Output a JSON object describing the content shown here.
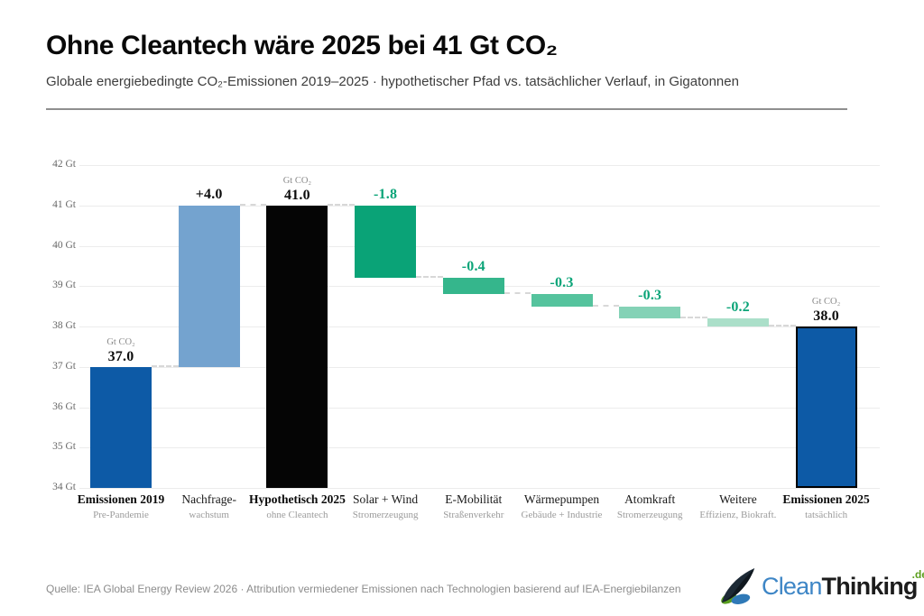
{
  "header": {
    "title": "Ohne Cleantech wäre 2025 bei 41 Gt CO₂",
    "subtitle": "Globale energiebedingte CO₂-Emissionen 2019–2025 · hypothetischer Pfad vs. tatsächlicher Verlauf, in Gigatonnen"
  },
  "footer": {
    "source": "Quelle: IEA Global Energy Review 2026 · Attribution vermiedener Emissionen nach Technologien basierend auf IEA-Energiebilanzen",
    "logo": {
      "part1": "Clean",
      "part2": "Thinking",
      "suffix": ".de"
    }
  },
  "colors": {
    "total_blue": "#0D5AA6",
    "increase_lightblue": "#74A3CF",
    "hypothetical_black": "#050505",
    "reduction_greens": [
      "#0AA377",
      "#35B68C",
      "#55C39D",
      "#84D2B6",
      "#ABDFC9"
    ],
    "reduction_text_green": "#0BA478",
    "gridline": "#ececec",
    "connector_dash": "#d8d8d8"
  },
  "chart_data": {
    "type": "bar",
    "subtype": "waterfall",
    "title": "Ohne Cleantech wäre 2025 bei 41 Gt CO₂",
    "unit_label": "Gt CO₂",
    "ylim": [
      34,
      42
    ],
    "yticks": [
      34,
      35,
      36,
      37,
      38,
      39,
      40,
      41,
      42
    ],
    "ytick_suffix": " Gt",
    "grid": true,
    "bars": [
      {
        "name": "Emissionen 2019",
        "sublabel": "Pre-Pandemie",
        "kind": "total",
        "value": 37.0,
        "value_label": "37.0",
        "show_unit": true,
        "emphasis": true,
        "bottom": 34,
        "top": 37,
        "color": "#0D5AA6",
        "value_color": "#0c0c0c",
        "border": false
      },
      {
        "name": "Nachfrage-",
        "sublabel": "wachstum",
        "kind": "increase",
        "value": 4.0,
        "value_label": "+4.0",
        "show_unit": false,
        "emphasis": false,
        "bottom": 37,
        "top": 41,
        "color": "#74A3CF",
        "value_color": "#0c0c0c",
        "border": false
      },
      {
        "name": "Hypothetisch 2025",
        "sublabel": "ohne Cleantech",
        "kind": "total",
        "value": 41.0,
        "value_label": "41.0",
        "show_unit": true,
        "emphasis": true,
        "bottom": 34,
        "top": 41,
        "color": "#050505",
        "value_color": "#0c0c0c",
        "border": false
      },
      {
        "name": "Solar + Wind",
        "sublabel": "Stromerzeugung",
        "kind": "decrease",
        "value": -1.8,
        "value_label": "-1.8",
        "show_unit": false,
        "emphasis": false,
        "bottom": 39.2,
        "top": 41,
        "color": "#0AA377",
        "value_color": "#0BA478",
        "border": false
      },
      {
        "name": "E-Mobilität",
        "sublabel": "Straßenverkehr",
        "kind": "decrease",
        "value": -0.4,
        "value_label": "-0.4",
        "show_unit": false,
        "emphasis": false,
        "bottom": 38.8,
        "top": 39.2,
        "color": "#35B68C",
        "value_color": "#0BA478",
        "border": false
      },
      {
        "name": "Wärmepumpen",
        "sublabel": "Gebäude + Industrie",
        "kind": "decrease",
        "value": -0.3,
        "value_label": "-0.3",
        "show_unit": false,
        "emphasis": false,
        "bottom": 38.5,
        "top": 38.8,
        "color": "#55C39D",
        "value_color": "#0BA478",
        "border": false
      },
      {
        "name": "Atomkraft",
        "sublabel": "Stromerzeugung",
        "kind": "decrease",
        "value": -0.3,
        "value_label": "-0.3",
        "show_unit": false,
        "emphasis": false,
        "bottom": 38.2,
        "top": 38.5,
        "color": "#84D2B6",
        "value_color": "#0BA478",
        "border": false
      },
      {
        "name": "Weitere",
        "sublabel": "Effizienz, Biokraft.",
        "kind": "decrease",
        "value": -0.2,
        "value_label": "-0.2",
        "show_unit": false,
        "emphasis": false,
        "bottom": 38.0,
        "top": 38.2,
        "color": "#ABDFC9",
        "value_color": "#0BA478",
        "border": false
      },
      {
        "name": "Emissionen 2025",
        "sublabel": "tatsächlich",
        "kind": "total",
        "value": 38.0,
        "value_label": "38.0",
        "show_unit": true,
        "emphasis": true,
        "bottom": 34,
        "top": 38,
        "color": "#0D5AA6",
        "value_color": "#0c0c0c",
        "border": true
      }
    ]
  }
}
